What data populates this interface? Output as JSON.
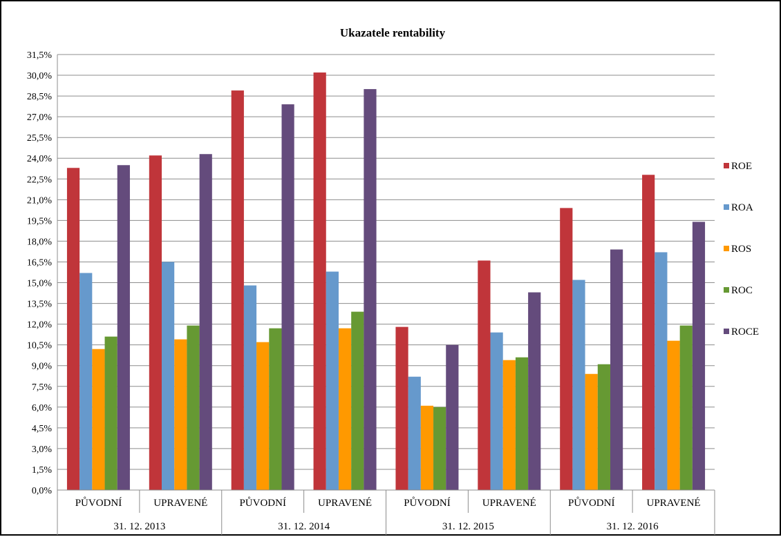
{
  "chart_data": {
    "type": "bar",
    "title": "Ukazatele rentability",
    "categories": [
      {
        "sub": "PŮVODNÍ",
        "group": "31. 12. 2013"
      },
      {
        "sub": "UPRAVENÉ",
        "group": "31. 12. 2013"
      },
      {
        "sub": "PŮVODNÍ",
        "group": "31. 12. 2014"
      },
      {
        "sub": "UPRAVENÉ",
        "group": "31. 12. 2014"
      },
      {
        "sub": "PŮVODNÍ",
        "group": "31. 12. 2015"
      },
      {
        "sub": "UPRAVENÉ",
        "group": "31. 12. 2015"
      },
      {
        "sub": "PŮVODNÍ",
        "group": "31. 12. 2016"
      },
      {
        "sub": "UPRAVENÉ",
        "group": "31. 12. 2016"
      }
    ],
    "groups": [
      "31. 12. 2013",
      "31. 12. 2014",
      "31. 12. 2015",
      "31. 12. 2016"
    ],
    "series": [
      {
        "name": "ROE",
        "color": "#C0353A",
        "values": [
          23.3,
          24.2,
          28.9,
          30.2,
          11.8,
          16.6,
          20.4,
          22.8
        ]
      },
      {
        "name": "ROA",
        "color": "#6699CC",
        "values": [
          15.7,
          16.5,
          14.8,
          15.8,
          8.2,
          11.4,
          15.2,
          17.2
        ]
      },
      {
        "name": "ROS",
        "color": "#FF9900",
        "values": [
          10.2,
          10.9,
          10.7,
          11.7,
          6.1,
          9.4,
          8.4,
          10.8
        ]
      },
      {
        "name": "ROC",
        "color": "#669933",
        "values": [
          11.1,
          11.9,
          11.7,
          12.9,
          6.0,
          9.6,
          9.1,
          11.9
        ]
      },
      {
        "name": "ROCE",
        "color": "#644B7C",
        "values": [
          23.5,
          24.3,
          27.9,
          29.0,
          10.5,
          14.3,
          17.4,
          19.4
        ]
      }
    ],
    "y_ticks": [
      "0,0%",
      "1,5%",
      "3,0%",
      "4,5%",
      "6,0%",
      "7,5%",
      "9,0%",
      "10,5%",
      "12,0%",
      "13,5%",
      "15,0%",
      "16,5%",
      "18,0%",
      "19,5%",
      "21,0%",
      "22,5%",
      "24,0%",
      "25,5%",
      "27,0%",
      "28,5%",
      "30,0%",
      "31,5%"
    ],
    "ylim": [
      0,
      31.5
    ],
    "y_step": 1.5,
    "unit": "%",
    "grid": true,
    "legend_position": "right"
  }
}
